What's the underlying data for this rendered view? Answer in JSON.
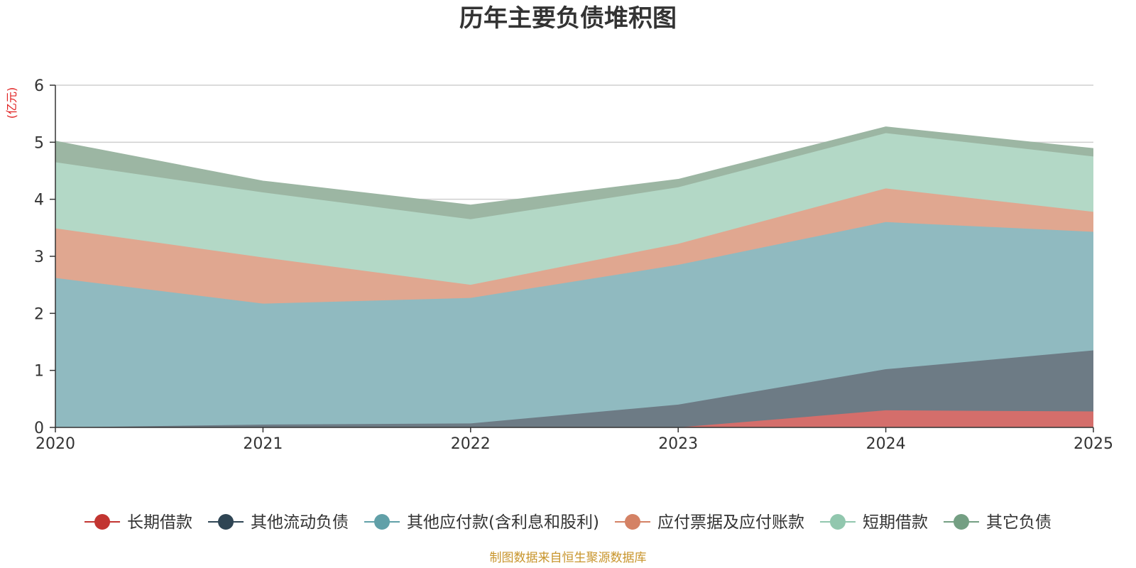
{
  "chart_data": {
    "type": "area",
    "stacked": true,
    "title": "历年主要负债堆积图",
    "unit_label": "(亿元)",
    "source": "制图数据来自恒生聚源数据库",
    "x": [
      "2020",
      "2021",
      "2022",
      "2023",
      "2024",
      "2025"
    ],
    "ylim": [
      0,
      6
    ],
    "yticks": [
      "0",
      "1",
      "2",
      "3",
      "4",
      "5",
      "6"
    ],
    "grid": true,
    "legend_position": "bottom",
    "series": [
      {
        "name": "长期借款",
        "values": [
          0,
          0,
          0,
          0,
          0.3,
          0.28
        ],
        "color": "#c23531",
        "fill": "#d46e6b"
      },
      {
        "name": "其他流动负债",
        "values": [
          0,
          0.05,
          0.07,
          0.4,
          0.72,
          1.07
        ],
        "color": "#2f4554",
        "fill": "#6d7b85"
      },
      {
        "name": "其他应付款(含利息和股利)",
        "values": [
          2.62,
          2.12,
          2.2,
          2.45,
          2.58,
          2.08
        ],
        "color": "#61a0a8",
        "fill": "#90bac0"
      },
      {
        "name": "应付票据及应付账款",
        "values": [
          0.87,
          0.81,
          0.23,
          0.37,
          0.59,
          0.35
        ],
        "color": "#d48265",
        "fill": "#e0a790"
      },
      {
        "name": "短期借款",
        "values": [
          1.16,
          1.14,
          1.15,
          0.99,
          0.97,
          0.97
        ],
        "color": "#91c7ae",
        "fill": "#b3d8c6"
      },
      {
        "name": "其它负债",
        "values": [
          0.37,
          0.2,
          0.25,
          0.14,
          0.11,
          0.14
        ],
        "color": "#749f83",
        "fill": "#9cb6a3"
      }
    ]
  }
}
